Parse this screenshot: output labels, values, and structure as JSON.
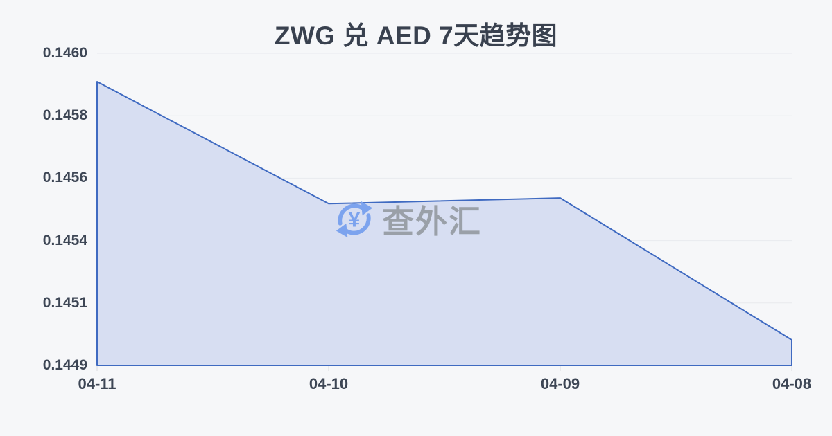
{
  "title": "ZWG 兑 AED 7天趋势图",
  "watermark": {
    "text": "查外汇",
    "symbol": "¥"
  },
  "colors": {
    "background": "#f6f7f9",
    "title_text": "#39414f",
    "axis_text": "#3d4655",
    "gridline": "#e8eaee",
    "tick": "#d9dbdf",
    "line": "#3f6ac1",
    "fill": "#d7def2",
    "watermark_icon": "#7ca3ee",
    "watermark_text": "#9aa0a8"
  },
  "chart_data": {
    "type": "area",
    "title": "ZWG 兑 AED 7天趋势图",
    "categories": [
      "04-11",
      "04-10",
      "04-09",
      "04-08"
    ],
    "values": [
      0.1459,
      0.14547,
      0.14549,
      0.14499
    ],
    "y_tick_labels": [
      "0.1460",
      "0.1458",
      "0.1456",
      "0.1454",
      "0.1451",
      "0.1449"
    ],
    "ylim": [
      0.1449,
      0.146
    ],
    "xlabel": "",
    "ylabel": "",
    "grid": true,
    "legend_position": "none"
  }
}
